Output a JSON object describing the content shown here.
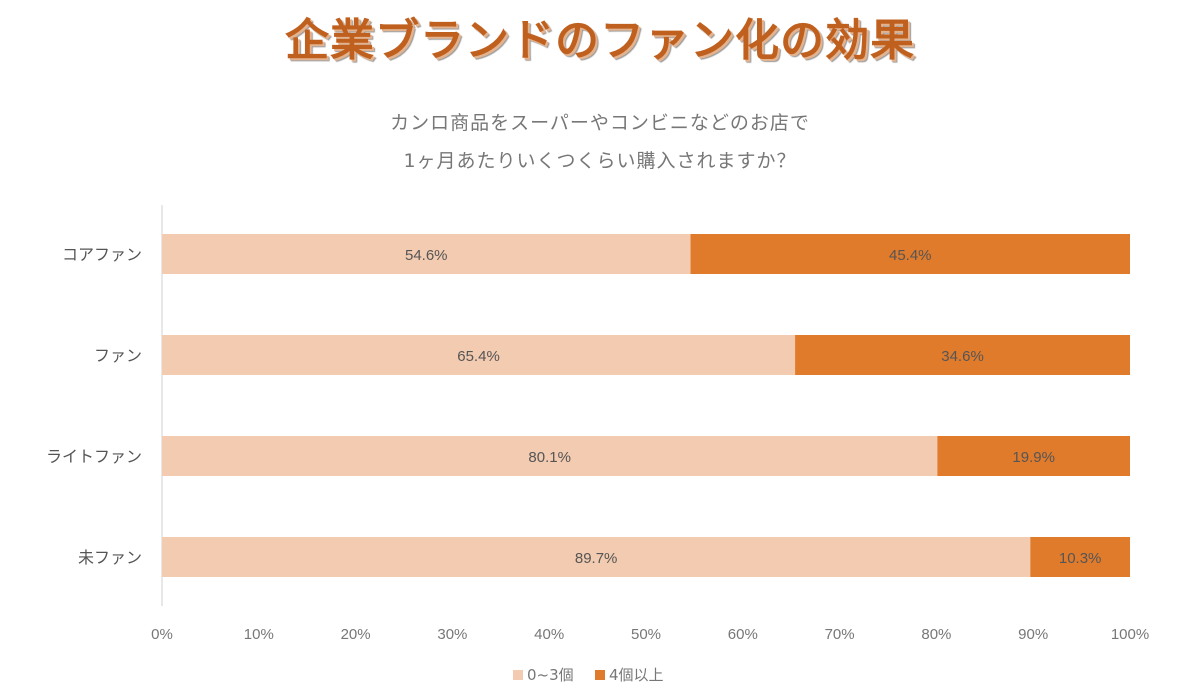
{
  "title": "企業ブランドのファン化の効果",
  "chart_data": {
    "type": "bar",
    "orientation": "horizontal-stacked-100",
    "title_lines": [
      "カンロ商品をスーパーやコンビニなどのお店で",
      "1ヶ月あたりいくつくらい購入されますか？"
    ],
    "categories": [
      "コアファン",
      "ファン",
      "ライトファン",
      "未ファン"
    ],
    "series": [
      {
        "name": "0~3個",
        "values": [
          54.6,
          65.4,
          80.1,
          89.7
        ],
        "labels": [
          "54.6%",
          "65.4%",
          "80.1%",
          "89.7%"
        ],
        "color": "#f2cbb0"
      },
      {
        "name": "4個以上",
        "values": [
          45.4,
          34.6,
          19.9,
          10.3
        ],
        "labels": [
          "45.4%",
          "34.6%",
          "19.9%",
          "10.3%"
        ],
        "color": "#e07b2c"
      }
    ],
    "xlim": [
      0,
      100
    ],
    "xticks": [
      "0%",
      "10%",
      "20%",
      "30%",
      "40%",
      "50%",
      "60%",
      "70%",
      "80%",
      "90%",
      "100%"
    ],
    "legend_position": "bottom"
  }
}
